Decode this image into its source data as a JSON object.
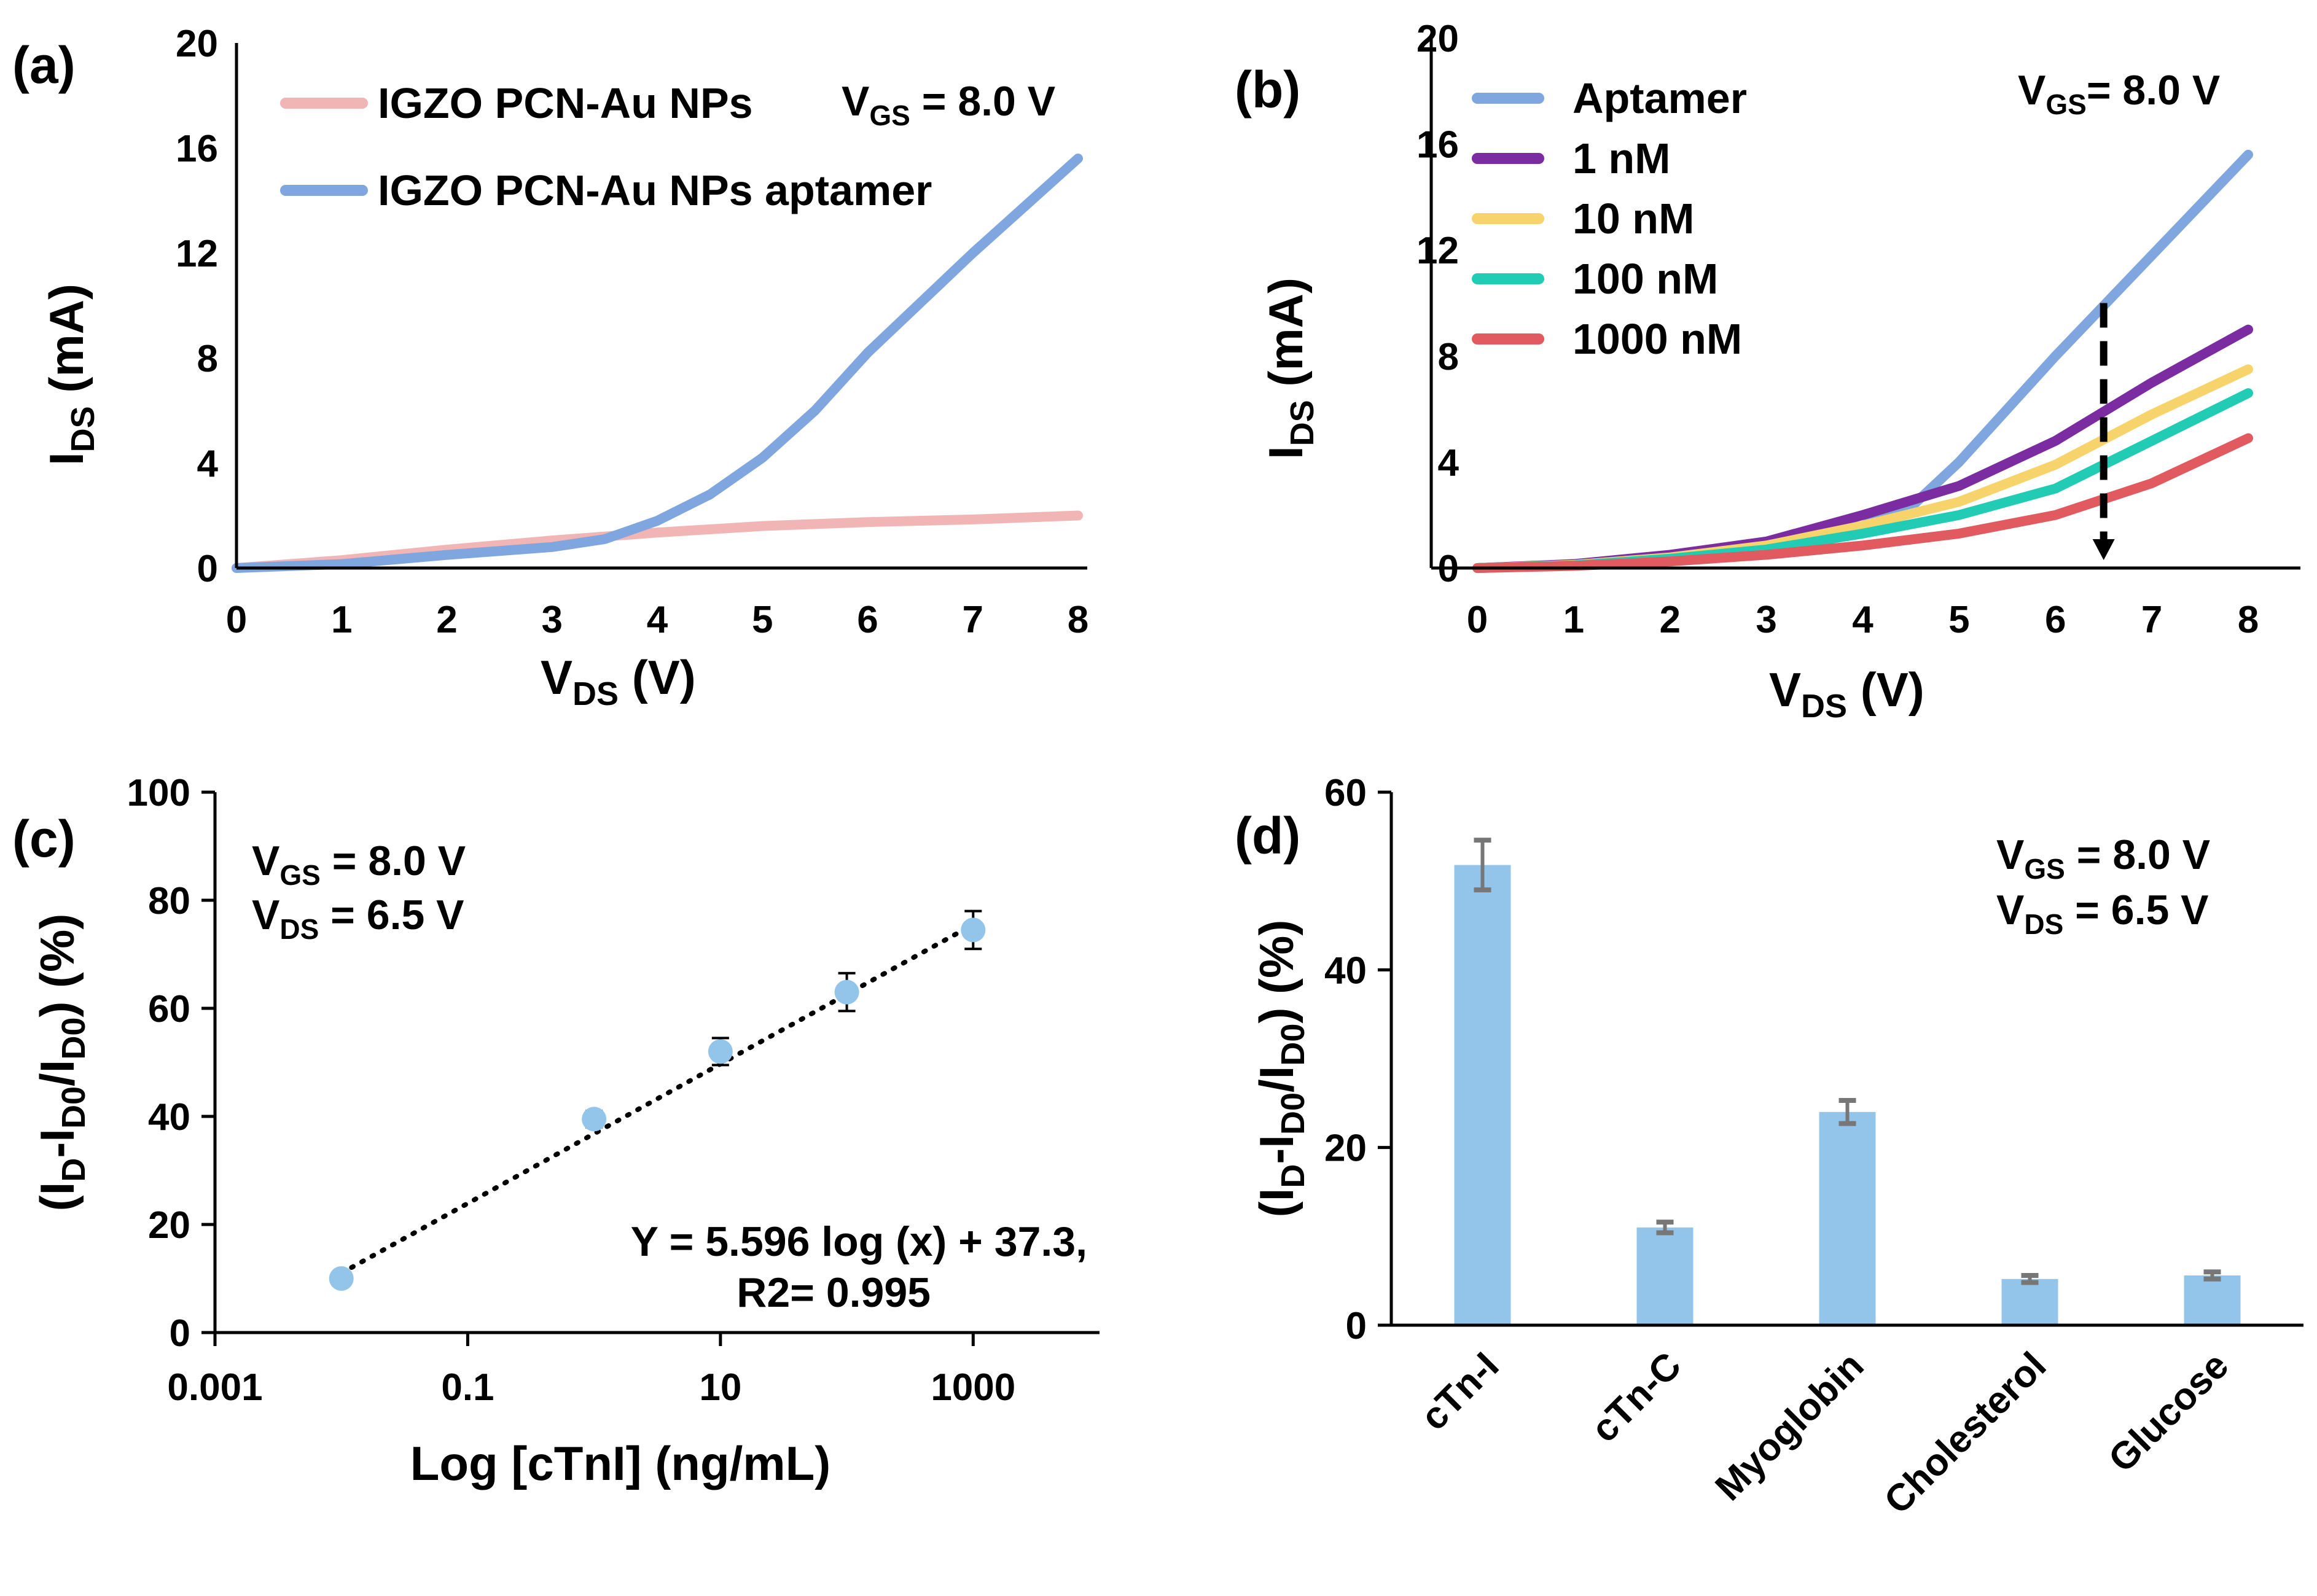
{
  "chart_data": [
    {
      "panel": "(a)",
      "type": "line",
      "xlabel": "V_DS (V)",
      "ylabel": "I_DS (mA)",
      "xlim": [
        0,
        8
      ],
      "ylim": [
        0,
        20
      ],
      "xticks": [
        0,
        1,
        2,
        3,
        4,
        5,
        6,
        7,
        8
      ],
      "yticks": [
        0,
        4,
        8,
        12,
        16,
        20
      ],
      "annotation": {
        "prefix": "V",
        "sub": "GS",
        "value": " = 8.0 V"
      },
      "series": [
        {
          "name": "IGZO PCN-Au NPs",
          "color": "#f2b5b5",
          "x": [
            0,
            1,
            2,
            3,
            4,
            5,
            6,
            7,
            8
          ],
          "y": [
            0,
            0.3,
            0.7,
            1.05,
            1.35,
            1.6,
            1.75,
            1.85,
            2.0
          ]
        },
        {
          "name": "IGZO PCN-Au NPs aptamer",
          "color": "#7fa6de",
          "x": [
            0,
            1,
            2,
            3,
            3.5,
            4,
            4.5,
            5,
            5.5,
            6,
            7,
            8
          ],
          "y": [
            0,
            0.15,
            0.5,
            0.8,
            1.1,
            1.8,
            2.8,
            4.2,
            6.0,
            8.2,
            12.0,
            15.6
          ]
        }
      ]
    },
    {
      "panel": "(b)",
      "type": "line",
      "xlabel": "V_DS (V)",
      "ylabel": "I_DS (mA)",
      "xlim": [
        0,
        8
      ],
      "ylim": [
        0,
        20
      ],
      "xticks": [
        0,
        1,
        2,
        3,
        4,
        5,
        6,
        7,
        8
      ],
      "yticks": [
        0,
        4,
        8,
        12,
        16,
        20
      ],
      "annotation": {
        "prefix": "V",
        "sub": "GS",
        "value": "= 8.0 V"
      },
      "arrow": {
        "x": 6.5,
        "y_from": 10.0,
        "y_to": 0.3
      },
      "series": [
        {
          "name": "Aptamer",
          "color": "#7fa6de",
          "x": [
            0,
            1,
            2,
            3,
            4,
            4.5,
            5,
            6,
            7,
            8
          ],
          "y": [
            0,
            0.1,
            0.4,
            0.9,
            1.6,
            2.3,
            4.0,
            8.0,
            11.8,
            15.6
          ]
        },
        {
          "name": "1 nM",
          "color": "#7a2ca0",
          "x": [
            0,
            1,
            2,
            3,
            4,
            5,
            6,
            7,
            8
          ],
          "y": [
            0,
            0.15,
            0.5,
            1.0,
            2.0,
            3.1,
            4.8,
            7.0,
            9.0
          ]
        },
        {
          "name": "10 nM",
          "color": "#f7d46b",
          "x": [
            0,
            1,
            2,
            3,
            4,
            5,
            6,
            7,
            8
          ],
          "y": [
            0,
            0.12,
            0.4,
            0.85,
            1.6,
            2.5,
            3.9,
            5.8,
            7.5
          ]
        },
        {
          "name": "100 nM",
          "color": "#22ccb4",
          "x": [
            0,
            1,
            2,
            3,
            4,
            5,
            6,
            7,
            8
          ],
          "y": [
            0,
            0.1,
            0.35,
            0.7,
            1.3,
            2.0,
            3.0,
            4.8,
            6.6
          ]
        },
        {
          "name": "1000 nM",
          "color": "#e05a60",
          "x": [
            0,
            1,
            2,
            3,
            4,
            5,
            6,
            7,
            8
          ],
          "y": [
            0,
            0.08,
            0.25,
            0.5,
            0.85,
            1.3,
            2.0,
            3.2,
            4.9
          ]
        }
      ]
    },
    {
      "panel": "(c)",
      "type": "scatter",
      "xscale": "log",
      "xlabel": "Log [cTnI] (ng/mL)",
      "ylabel": "(I_D-I_D0/I_D0) (%)",
      "xlim": [
        0.001,
        10000
      ],
      "ylim": [
        0,
        100
      ],
      "xticks": [
        0.001,
        0.1,
        10,
        1000
      ],
      "xtick_labels": [
        "0.001",
        "0.1",
        "10",
        "1000"
      ],
      "yticks": [
        0,
        20,
        40,
        60,
        80,
        100
      ],
      "annotations": [
        {
          "prefix": "V",
          "sub": "GS",
          "value": " = 8.0 V"
        },
        {
          "prefix": "V",
          "sub": "DS",
          "value": " = 6.5 V"
        }
      ],
      "fit_equation": "Y = 5.596 log (x) + 37.3,",
      "fit_r2": "R2= 0.995",
      "color": "#93c4ea",
      "x": [
        0.01,
        1,
        10,
        100,
        1000
      ],
      "y": [
        10,
        39.5,
        52,
        63,
        74.5
      ],
      "err": [
        0,
        1.5,
        2.5,
        3.5,
        3.5
      ],
      "fit": {
        "x": [
          0.01,
          1000
        ],
        "y": [
          11,
          75.5
        ]
      }
    },
    {
      "panel": "(d)",
      "type": "bar",
      "ylabel": "(I_D-I_D0/I_D0) (%)",
      "ylim": [
        0,
        60
      ],
      "yticks": [
        0,
        20,
        40,
        60
      ],
      "annotations": [
        {
          "prefix": "V",
          "sub": "GS",
          "value": " = 8.0 V"
        },
        {
          "prefix": "V",
          "sub": "DS",
          "value": " = 6.5 V"
        }
      ],
      "color": "#93c4ea",
      "categories": [
        "cTn-I",
        "cTn-C",
        "Myoglobin",
        "Cholesterol",
        "Glucose"
      ],
      "values": [
        51.8,
        11,
        24,
        5.2,
        5.6
      ],
      "err": [
        2.8,
        0.6,
        1.3,
        0.4,
        0.4
      ]
    }
  ]
}
